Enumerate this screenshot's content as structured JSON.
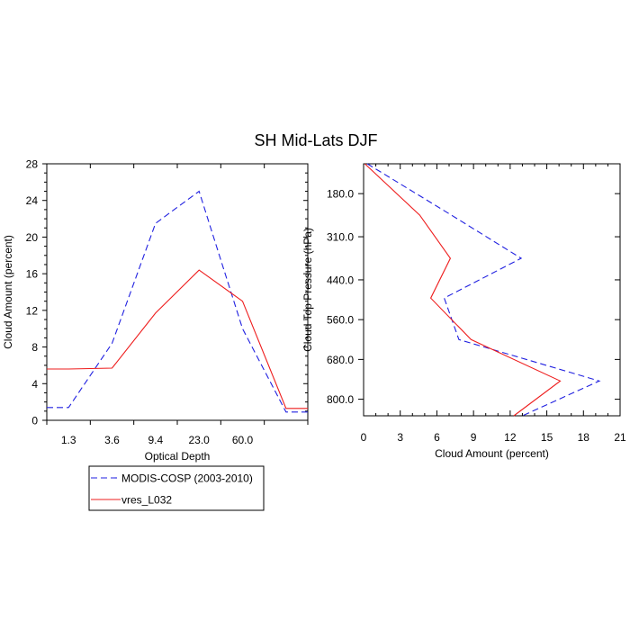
{
  "title": "SH Mid-Lats DJF",
  "colors": {
    "obs": "#2020e0",
    "model": "#ee1c1c"
  },
  "chart_data": [
    {
      "type": "line",
      "xlabel": "Optical Depth",
      "ylabel": "Cloud Amount (percent)",
      "x_tick_labels": [
        "1.3",
        "3.6",
        "9.4",
        "23.0",
        "60.0"
      ],
      "y_ticks": [
        0,
        4,
        8,
        12,
        16,
        20,
        24,
        28
      ],
      "ylim": [
        0,
        28
      ],
      "x_index": [
        0,
        1,
        2,
        3,
        4,
        5,
        6
      ],
      "series": [
        {
          "name": "MODIS-COSP (2003-2010)",
          "style": "dashed",
          "values": [
            1.4,
            8.4,
            21.5,
            25.0,
            10.0,
            0.9
          ]
        },
        {
          "name": "vres_L032",
          "style": "solid",
          "values": [
            5.6,
            5.7,
            11.7,
            16.4,
            13.0,
            1.3
          ]
        }
      ]
    },
    {
      "type": "line",
      "xlabel": "Cloud Amount (percent)",
      "ylabel": "Cloud Top Pressure (hPa)",
      "x_ticks": [
        0,
        3,
        6,
        9,
        12,
        15,
        18,
        21
      ],
      "xlim": [
        0,
        21
      ],
      "y_tick_labels": [
        "180.0",
        "310.0",
        "440.0",
        "560.0",
        "680.0",
        "800.0"
      ],
      "y_ticks": [
        180,
        310,
        440,
        560,
        680,
        800
      ],
      "ylim": [
        90,
        850
      ],
      "series": [
        {
          "name": "MODIS-COSP (2003-2010)",
          "style": "dashed",
          "pressure": [
            90,
            245,
            375,
            495,
            620,
            745,
            850
          ],
          "values": [
            0.3,
            7.2,
            12.9,
            6.6,
            7.8,
            19.3,
            13.0
          ]
        },
        {
          "name": "vres_L032",
          "style": "solid",
          "pressure": [
            90,
            245,
            375,
            495,
            620,
            745,
            850
          ],
          "values": [
            0.1,
            4.6,
            7.1,
            5.5,
            8.8,
            16.1,
            12.3
          ]
        }
      ]
    }
  ],
  "legend": [
    {
      "label": "MODIS-COSP (2003-2010)",
      "style": "dashed"
    },
    {
      "label": "vres_L032",
      "style": "solid"
    }
  ]
}
